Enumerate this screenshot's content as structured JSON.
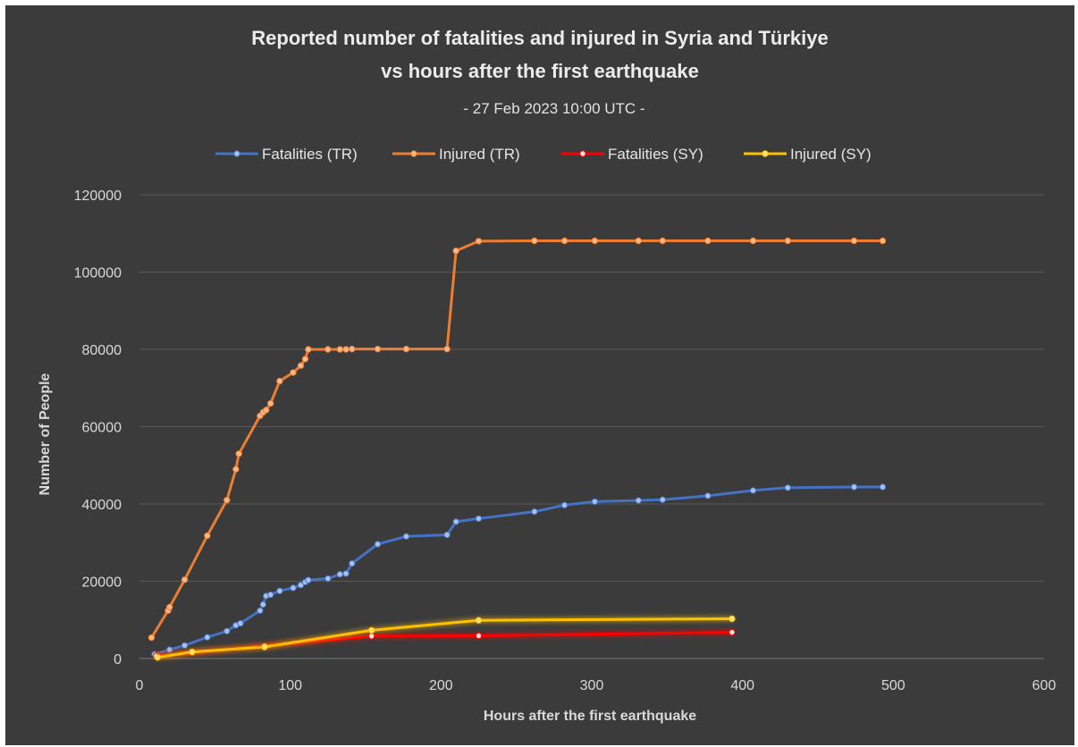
{
  "chart_data": {
    "type": "line",
    "title": [
      "Reported number of fatalities and injured in Syria and Türkiye",
      "vs hours after the first earthquake"
    ],
    "subtitle": "- 27 Feb 2023 10:00 UTC -",
    "xlabel": "Hours after the first earthquake",
    "ylabel": "Number of People",
    "xlim": [
      0,
      600
    ],
    "ylim": [
      0,
      120000
    ],
    "xticks": [
      0,
      100,
      200,
      300,
      400,
      500,
      600
    ],
    "yticks": [
      0,
      20000,
      40000,
      60000,
      80000,
      100000,
      120000
    ],
    "grid": "horizontal",
    "legend_position": "top",
    "series": [
      {
        "name": "Fatalities (TR)",
        "color": "#4472c4",
        "points": [
          [
            10,
            1100
          ],
          [
            20,
            2300
          ],
          [
            30,
            3400
          ],
          [
            45,
            5500
          ],
          [
            58,
            7100
          ],
          [
            64,
            8600
          ],
          [
            67,
            9100
          ],
          [
            80,
            12400
          ],
          [
            82,
            14000
          ],
          [
            84,
            16200
          ],
          [
            87,
            16500
          ],
          [
            93,
            17500
          ],
          [
            102,
            18300
          ],
          [
            107,
            19000
          ],
          [
            110,
            19800
          ],
          [
            112,
            20300
          ],
          [
            125,
            20700
          ],
          [
            133,
            21800
          ],
          [
            137,
            22000
          ],
          [
            141,
            24600
          ],
          [
            158,
            29600
          ],
          [
            177,
            31600
          ],
          [
            204,
            32000
          ],
          [
            210,
            35400
          ],
          [
            225,
            36200
          ],
          [
            262,
            38000
          ],
          [
            282,
            39700
          ],
          [
            302,
            40600
          ],
          [
            331,
            40900
          ],
          [
            347,
            41100
          ],
          [
            377,
            42100
          ],
          [
            407,
            43500
          ],
          [
            430,
            44200
          ],
          [
            474,
            44400
          ],
          [
            493,
            44400
          ]
        ]
      },
      {
        "name": "Injured (TR)",
        "color": "#ed7d31",
        "points": [
          [
            8,
            5400
          ],
          [
            19,
            12400
          ],
          [
            20,
            13300
          ],
          [
            30,
            20400
          ],
          [
            45,
            31800
          ],
          [
            58,
            41000
          ],
          [
            64,
            49000
          ],
          [
            66,
            53000
          ],
          [
            80,
            62800
          ],
          [
            82,
            63700
          ],
          [
            84,
            64300
          ],
          [
            87,
            66000
          ],
          [
            93,
            71800
          ],
          [
            102,
            74000
          ],
          [
            107,
            75800
          ],
          [
            110,
            77500
          ],
          [
            112,
            80000
          ],
          [
            125,
            80000
          ],
          [
            133,
            80000
          ],
          [
            137,
            80000
          ],
          [
            141,
            80100
          ],
          [
            158,
            80100
          ],
          [
            177,
            80100
          ],
          [
            204,
            80100
          ],
          [
            210,
            105500
          ],
          [
            225,
            108000
          ],
          [
            262,
            108100
          ],
          [
            282,
            108100
          ],
          [
            302,
            108100
          ],
          [
            331,
            108100
          ],
          [
            347,
            108100
          ],
          [
            377,
            108100
          ],
          [
            407,
            108100
          ],
          [
            430,
            108100
          ],
          [
            474,
            108100
          ],
          [
            493,
            108100
          ]
        ]
      },
      {
        "name": "Fatalities (SY)",
        "color": "#ff0000",
        "points": [
          [
            11,
            700
          ],
          [
            35,
            1500
          ],
          [
            83,
            3300
          ],
          [
            154,
            5800
          ],
          [
            225,
            5900
          ],
          [
            393,
            6800
          ]
        ]
      },
      {
        "name": "Injured (SY)",
        "color": "#ffc000",
        "points": [
          [
            12,
            300
          ],
          [
            35,
            1700
          ],
          [
            83,
            3000
          ],
          [
            154,
            7300
          ],
          [
            225,
            9900
          ],
          [
            393,
            10300
          ]
        ]
      }
    ]
  }
}
